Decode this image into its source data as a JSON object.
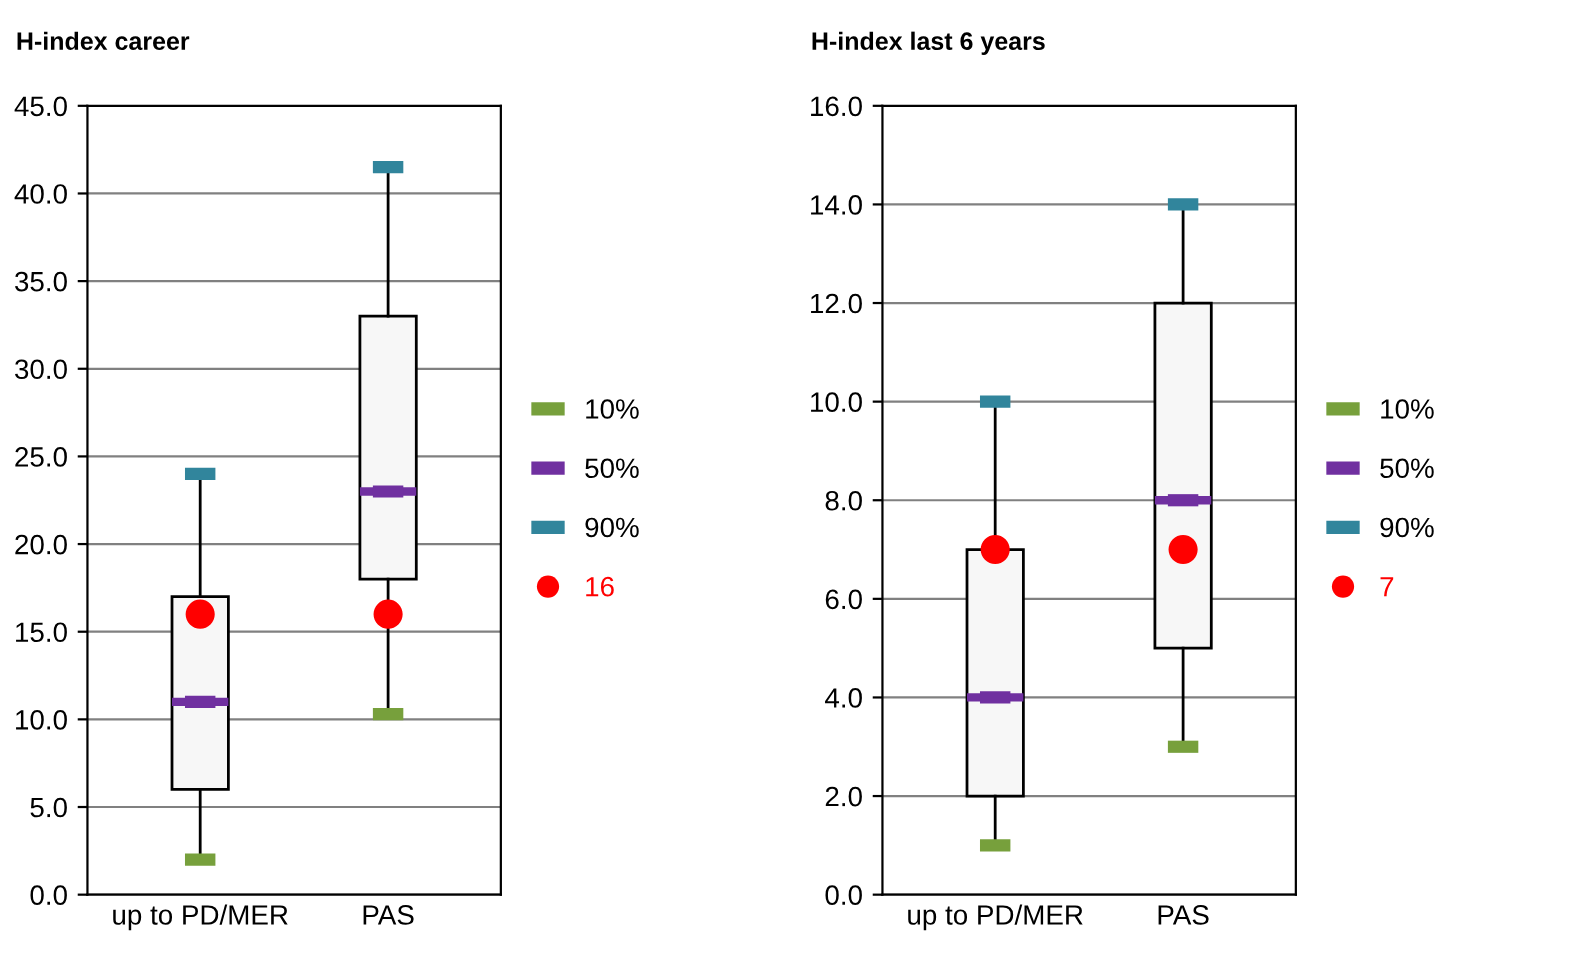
{
  "chart_data": [
    {
      "type": "box",
      "title": "H-index career",
      "categories": [
        "up to PD/MER",
        "PAS"
      ],
      "boxes": [
        {
          "low": 2,
          "q1": 6,
          "median": 11,
          "q3": 17,
          "high": 24
        },
        {
          "low": 10.3,
          "q1": 18,
          "median": 23,
          "q3": 33,
          "high": 41.5
        }
      ],
      "series": [
        {
          "type": "scatter",
          "name": "10%",
          "color": "#77a03c",
          "x": [
            "up to PD/MER",
            "PAS"
          ],
          "values": [
            2,
            10.3
          ]
        },
        {
          "type": "scatter",
          "name": "50%",
          "color": "#7030a0",
          "x": [
            "up to PD/MER",
            "PAS"
          ],
          "values": [
            11,
            23
          ]
        },
        {
          "type": "scatter",
          "name": "90%",
          "color": "#31859c",
          "x": [
            "up to PD/MER",
            "PAS"
          ],
          "values": [
            24,
            41.5
          ]
        },
        {
          "type": "scatter",
          "name": "16",
          "color": "#ff0000",
          "marker": "circle",
          "x": [
            "up to PD/MER",
            "PAS"
          ],
          "values": [
            16,
            16
          ]
        }
      ],
      "ylim": [
        0,
        45
      ],
      "yticks": [
        {
          "value": 0,
          "label": "0.0"
        },
        {
          "value": 5,
          "label": "5.0"
        },
        {
          "value": 10,
          "label": "10.0"
        },
        {
          "value": 15,
          "label": "15.0"
        },
        {
          "value": 20,
          "label": "20.0"
        },
        {
          "value": 25,
          "label": "25.0"
        },
        {
          "value": 30,
          "label": "30.0"
        },
        {
          "value": 35,
          "label": "35.0"
        },
        {
          "value": 40,
          "label": "40.0"
        },
        {
          "value": 45,
          "label": "45.0"
        }
      ],
      "grid": "y",
      "legend": "right"
    },
    {
      "type": "box",
      "title": "H-index last 6 years",
      "categories": [
        "up to PD/MER",
        "PAS"
      ],
      "boxes": [
        {
          "low": 1,
          "q1": 2,
          "median": 4,
          "q3": 7,
          "high": 10
        },
        {
          "low": 3,
          "q1": 5,
          "median": 8,
          "q3": 12,
          "high": 14
        }
      ],
      "series": [
        {
          "type": "scatter",
          "name": "10%",
          "color": "#77a03c",
          "x": [
            "up to PD/MER",
            "PAS"
          ],
          "values": [
            1,
            3
          ]
        },
        {
          "type": "scatter",
          "name": "50%",
          "color": "#7030a0",
          "x": [
            "up to PD/MER",
            "PAS"
          ],
          "values": [
            4,
            8
          ]
        },
        {
          "type": "scatter",
          "name": "90%",
          "color": "#31859c",
          "x": [
            "up to PD/MER",
            "PAS"
          ],
          "values": [
            10,
            14
          ]
        },
        {
          "type": "scatter",
          "name": "7",
          "color": "#ff0000",
          "marker": "circle",
          "x": [
            "up to PD/MER",
            "PAS"
          ],
          "values": [
            7,
            7
          ]
        }
      ],
      "ylim": [
        0,
        16
      ],
      "yticks": [
        {
          "value": 0,
          "label": "0.0"
        },
        {
          "value": 2,
          "label": "2.0"
        },
        {
          "value": 4,
          "label": "4.0"
        },
        {
          "value": 6,
          "label": "6.0"
        },
        {
          "value": 8,
          "label": "8.0"
        },
        {
          "value": 10,
          "label": "10.0"
        },
        {
          "value": 12,
          "label": "12.0"
        },
        {
          "value": 14,
          "label": "14.0"
        },
        {
          "value": 16,
          "label": "16.0"
        }
      ],
      "grid": "y",
      "legend": "right"
    }
  ]
}
